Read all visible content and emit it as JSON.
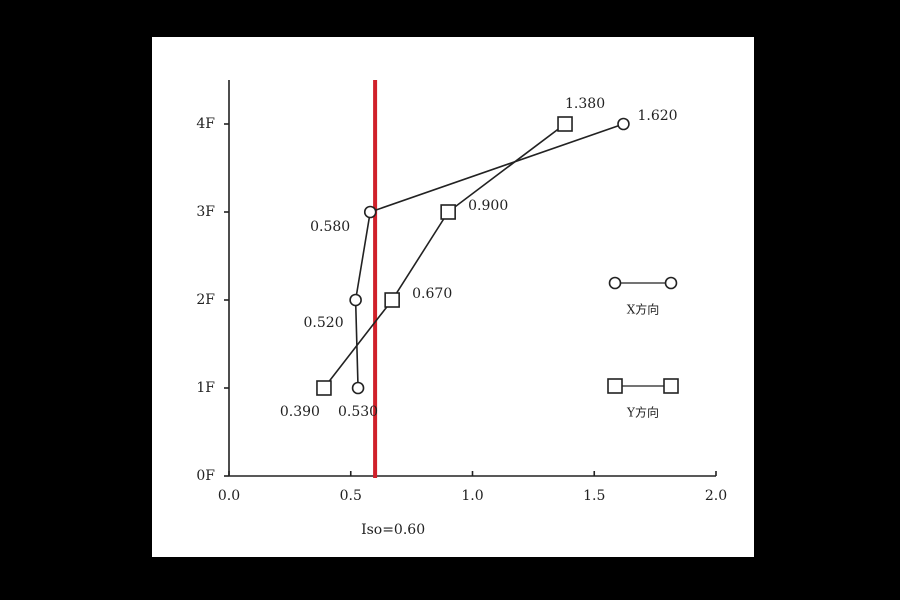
{
  "chart_data": {
    "type": "line",
    "y": [
      1,
      2,
      3,
      4
    ],
    "series": [
      {
        "name": "X方向",
        "marker": "circle",
        "color": "#222222",
        "values": [
          0.53,
          0.52,
          0.58,
          1.62
        ],
        "value_labels": [
          "0.530",
          "0.520",
          "0.580",
          "1.620"
        ]
      },
      {
        "name": "Y方向",
        "marker": "square",
        "color": "#222222",
        "values": [
          0.39,
          0.67,
          0.9,
          1.38
        ],
        "value_labels": [
          "0.390",
          "0.670",
          "0.900",
          "1.380"
        ]
      }
    ],
    "xlim": [
      0,
      2
    ],
    "xticks": [
      {
        "value": 0,
        "label": "0.0"
      },
      0.5,
      {
        "value": 1,
        "label": "1.0"
      },
      1.5,
      {
        "value": 2,
        "label": "2.0"
      }
    ],
    "ylim": [
      0,
      4.5
    ],
    "yticks": [
      {
        "value": 0,
        "label": "0F"
      },
      {
        "value": 1,
        "label": "1F"
      },
      {
        "value": 2,
        "label": "2F"
      },
      {
        "value": 3,
        "label": "3F"
      },
      {
        "value": 4,
        "label": "4F"
      }
    ],
    "reference_line": {
      "value": 0.6,
      "label": "Iso=0.60",
      "color": "#d0202a"
    },
    "grid": false
  }
}
